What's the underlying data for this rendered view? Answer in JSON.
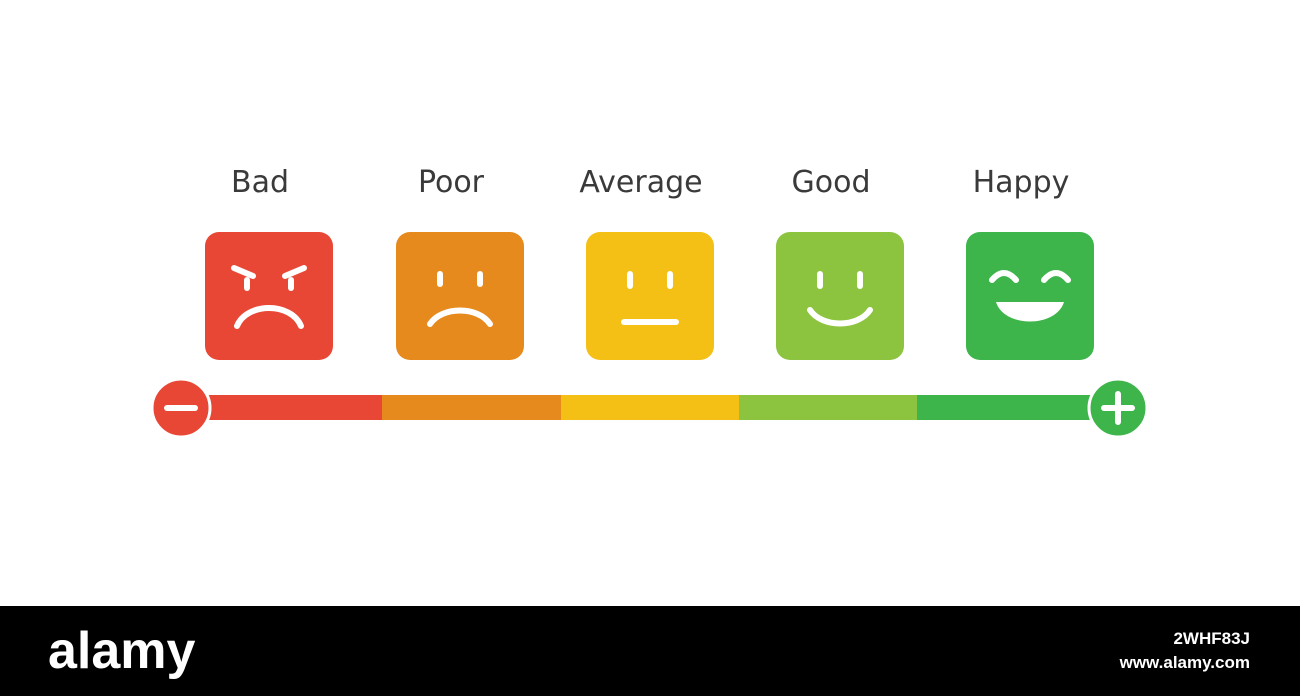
{
  "ratings": [
    {
      "label": "Bad",
      "color": "#e94735"
    },
    {
      "label": "Poor",
      "color": "#e78a1e"
    },
    {
      "label": "Average",
      "color": "#f4c015"
    },
    {
      "label": "Good",
      "color": "#8cc43f"
    },
    {
      "label": "Happy",
      "color": "#3db54a"
    }
  ],
  "footer": {
    "logo": "alamy",
    "image_id": "2WHF83J",
    "url": "www.alamy.com"
  }
}
